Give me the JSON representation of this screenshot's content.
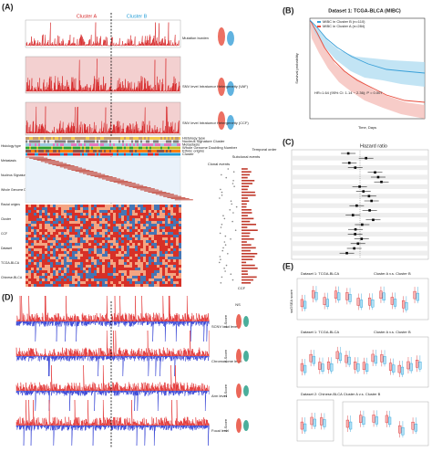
{
  "panel_a": {
    "label": "(A)",
    "cluster_a": "Cluster A",
    "cluster_b": "Cluster B",
    "tracks": [
      "Mutation burden",
      "SNV level Intratumor Hetergeneity (VAF)",
      "SNV level Intratumor Hetergeneity (CCF)"
    ],
    "left_labels": [
      "Histology type",
      "Metastasis",
      "Nucleus Signature Cluster",
      "Whole Genome Doubling Number",
      "Racial origins",
      "Cluster",
      "CCF",
      "Dataset",
      "TCGA-BLCA",
      "Chinese-BLCA"
    ],
    "annotations": [
      "Histology type",
      "Nucleus Signature Cluster",
      "Metastasis",
      "Whole Genome Doubling Number",
      "Ethnic origins",
      "Cluster"
    ],
    "events": [
      "Subclonal events",
      "Clonal events",
      "Temporal order"
    ],
    "ccf_axis": "CCF"
  },
  "panel_b": {
    "label": "(B)",
    "title": "Dataset 1: TCGA-BLCA (MIBC)",
    "legend": [
      "MIBC in Cluster B (n=110)",
      "MIBC in Cluster A (n=284)"
    ],
    "stat": "HR=1.64 (95% CI: 1.14 ~ 2.36); P = 0.007",
    "ylabel": "Survival probability",
    "xlabel": "Time, Days"
  },
  "panel_c": {
    "label": "(C)",
    "title": "Hazard ratio"
  },
  "panel_d": {
    "label": "(D)",
    "tracks": [
      "SCNV load level",
      "Chromosome level",
      "Arm level",
      "Focal level"
    ],
    "ylabel": "Z-Score",
    "ns": "NS"
  },
  "panel_e": {
    "label": "(E)",
    "sub1": "Dataset 1: TCGA-BLCA",
    "sub1b": "Cluster A v.s. Cluster B",
    "sub2": "Dataset 1: TCGA-BLCA",
    "sub2b": "Cluster A v.s. Cluster B",
    "sub3": "Dataset 2: Chinese-BLCA Cluster A v.s. Cluster B",
    "ylabel": "ssGSEA score"
  }
}
